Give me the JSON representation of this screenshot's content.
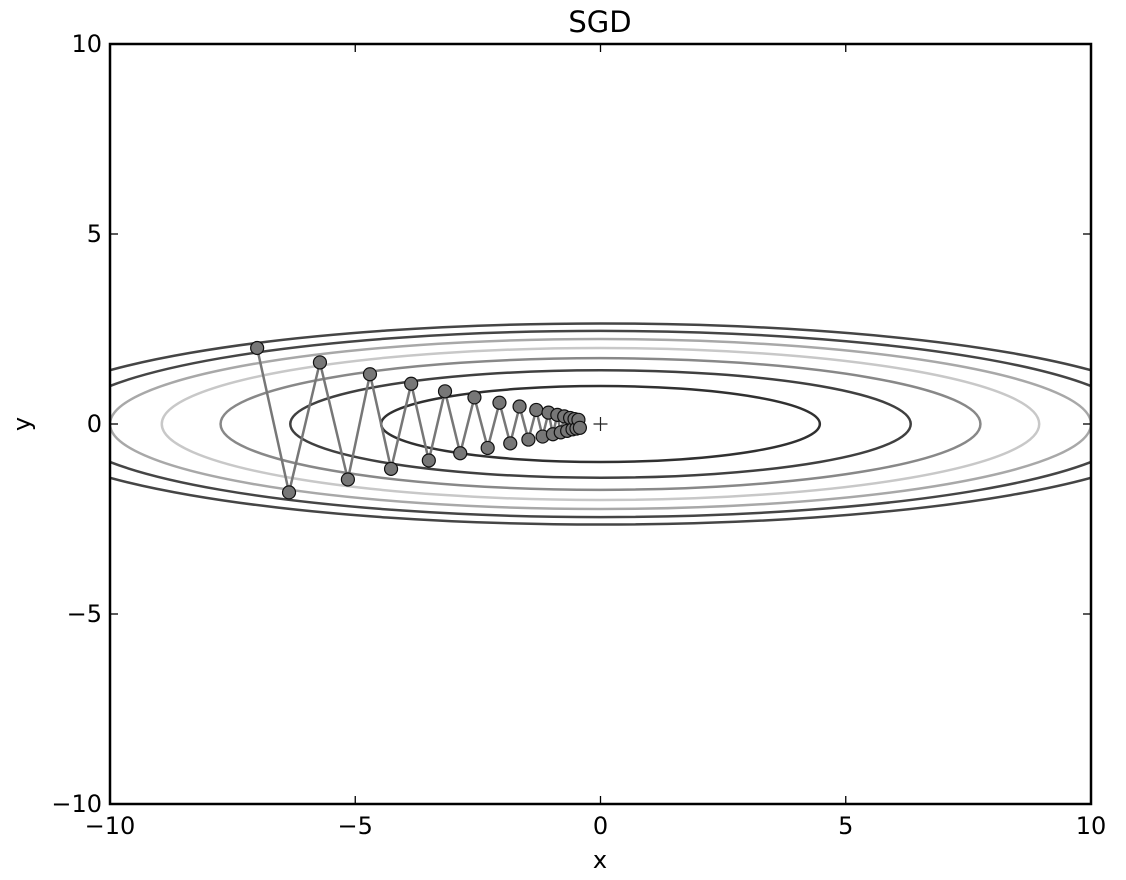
{
  "chart_data": {
    "type": "line",
    "title": "SGD",
    "xlabel": "x",
    "ylabel": "y",
    "xlim": [
      -10,
      10
    ],
    "ylim": [
      -10,
      10
    ],
    "x_ticks": [
      -10,
      -5,
      0,
      5,
      10
    ],
    "y_ticks": [
      -10,
      -5,
      0,
      5,
      10
    ],
    "x_tick_labels": [
      "−10",
      "−5",
      "0",
      "5",
      "10"
    ],
    "y_tick_labels": [
      "−10",
      "−5",
      "0",
      "5",
      "10"
    ],
    "grid": false,
    "contour": {
      "function": "x^2/20 + y^2",
      "levels": [
        1,
        2,
        3,
        4,
        5,
        6,
        7
      ],
      "colors": [
        "#303030",
        "#404040",
        "#888888",
        "#c8c8c8",
        "#a8a8a8",
        "#454545",
        "#454545"
      ]
    },
    "minimum_marker": {
      "x": 0,
      "y": 0,
      "symbol": "+"
    },
    "path": {
      "marker": "circle",
      "color": "#777777",
      "x": [
        -7.0,
        -6.35,
        -5.72,
        -5.15,
        -4.7,
        -4.27,
        -3.86,
        -3.5,
        -3.17,
        -2.86,
        -2.57,
        -2.3,
        -2.06,
        -1.84,
        -1.65,
        -1.47,
        -1.31,
        -1.18,
        -1.06,
        -0.97,
        -0.88,
        -0.81,
        -0.74,
        -0.68,
        -0.62,
        -0.57,
        -0.53,
        -0.49,
        -0.45,
        -0.42
      ],
      "y": [
        2.0,
        -1.8,
        1.62,
        -1.46,
        1.31,
        -1.18,
        1.06,
        -0.96,
        0.86,
        -0.77,
        0.7,
        -0.63,
        0.56,
        -0.51,
        0.46,
        -0.41,
        0.37,
        -0.33,
        0.3,
        -0.27,
        0.24,
        -0.22,
        0.2,
        -0.18,
        0.16,
        -0.14,
        0.13,
        -0.12,
        0.11,
        -0.1
      ]
    }
  }
}
